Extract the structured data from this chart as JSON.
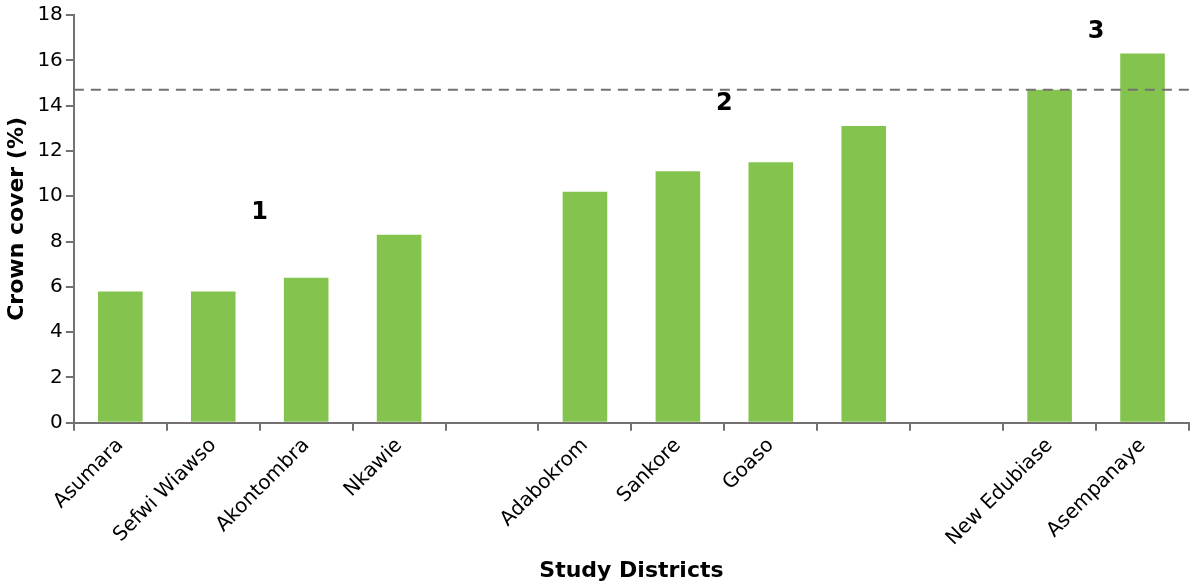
{
  "chart_data": {
    "type": "bar",
    "xlabel": "Study Districts",
    "ylabel": "Crown cover (%)",
    "categories": [
      "Asumara",
      "Sefwi Wiawso",
      "Akontombra",
      "Nkawie",
      null,
      "Adabokrom",
      "Sankore",
      "Goaso",
      null,
      null,
      "New Edubiase",
      "Asempanaye"
    ],
    "values": [
      5.8,
      5.8,
      6.4,
      8.3,
      null,
      10.2,
      11.1,
      11.5,
      13.1,
      null,
      14.7,
      16.3
    ],
    "color": "#84c44e",
    "ylim": [
      0,
      18
    ],
    "yticks": [
      0,
      2,
      4,
      6,
      8,
      10,
      12,
      14,
      16,
      18
    ],
    "grid": false,
    "legend": false,
    "ref_lines": [
      {
        "axis": "y",
        "value": 14.7,
        "color": "#767171",
        "line_style": "dashed"
      }
    ],
    "annotations": [
      "1",
      "2",
      "3"
    ]
  }
}
